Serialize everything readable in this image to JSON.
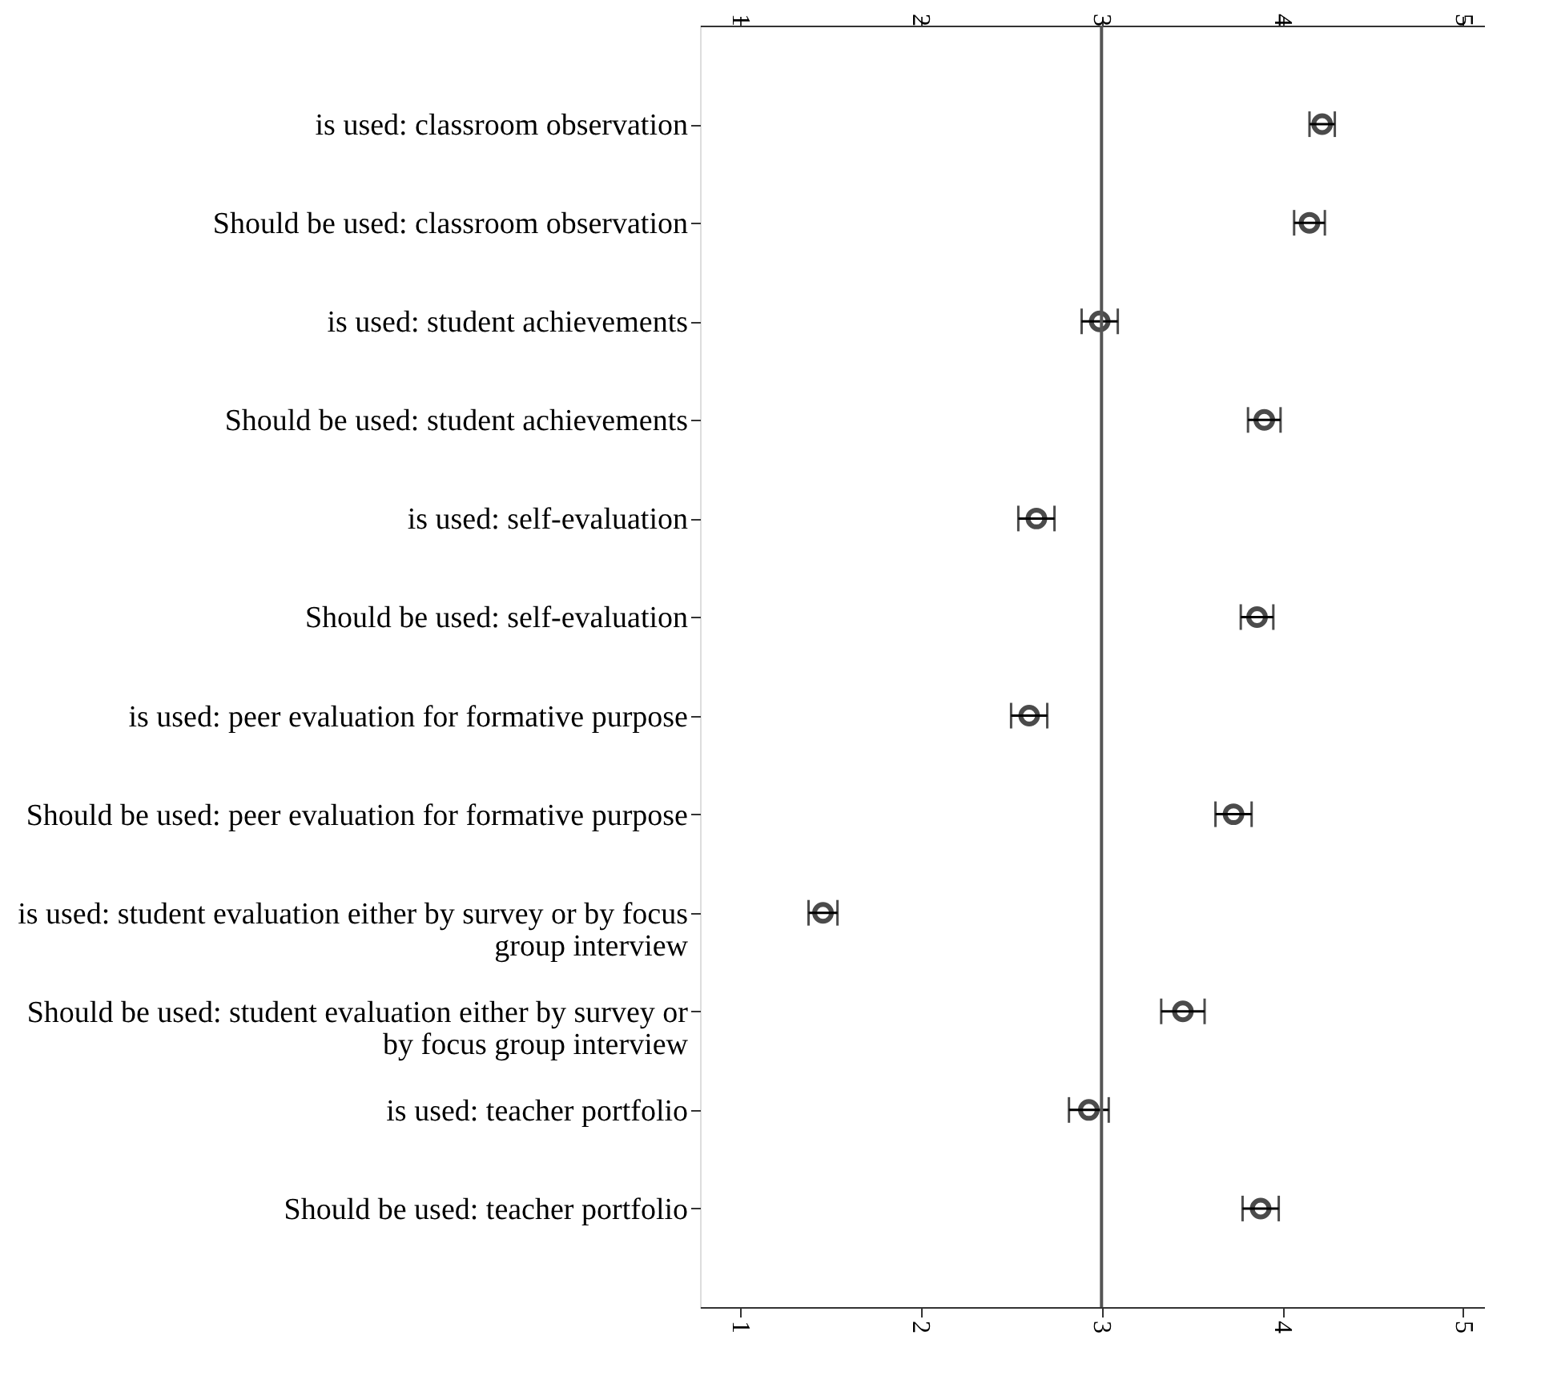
{
  "chart_data": {
    "type": "scatter",
    "orientation": "horizontal",
    "categories": [
      "is used:  classroom observation",
      "Should be used: classroom observation",
      "is used: student achievements",
      "Should be used: student achievements",
      "is used: self-evaluation",
      "Should be used: self-evaluation",
      "is used: peer evaluation for formative purpose",
      "Should be used: peer evaluation for formative purpose",
      "is used:  student evaluation either by survey or by focus\ngroup interview",
      "Should be used: student evaluation either by survey or\nby focus group interview",
      "is used: teacher portfolio",
      "Should be used: teacher portfolio"
    ],
    "series": [
      {
        "color": "#000000",
        "values": [
          4.22,
          4.15,
          2.99,
          3.9,
          2.64,
          3.86,
          2.6,
          3.73,
          1.46,
          3.45,
          2.93,
          3.88
        ],
        "errors": [
          0.07,
          0.085,
          0.1,
          0.09,
          0.1,
          0.09,
          0.1,
          0.1,
          0.08,
          0.12,
          0.11,
          0.1
        ]
      }
    ],
    "xlim": [
      0.78,
      5.12
    ],
    "xticks": [
      1,
      2,
      3,
      4,
      5
    ],
    "x2lim": [
      0.78,
      5.12
    ],
    "x2ticks": [
      1,
      2,
      3,
      4,
      5
    ],
    "ref_lines": [
      {
        "axis": "x",
        "value": 3,
        "color": "#555555"
      }
    ],
    "marker": "circle",
    "grid": false,
    "legend": false
  }
}
